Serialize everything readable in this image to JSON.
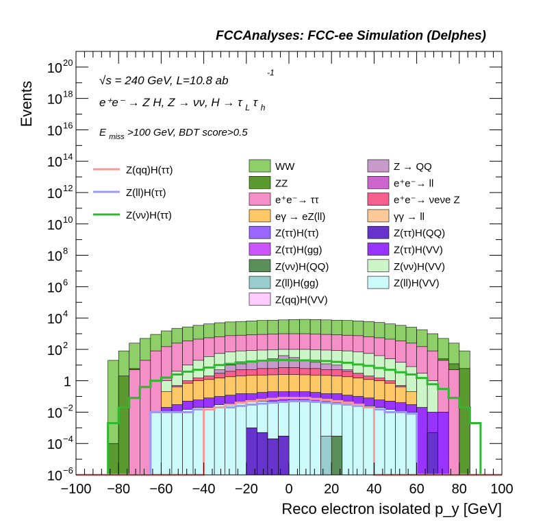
{
  "header": {
    "title": "FCCAnalyses: FCC-ee Simulation (Delphes)"
  },
  "annotations": {
    "energy_prefix": "√s = 240 GeV, L=10.8 ab",
    "energy_exp": "-1",
    "process": "e⁺e⁻ → Z H, Z → νν, H → τ_L τ_h",
    "process_main": "e⁺e⁻ → Z H, Z → νν, H → τ",
    "sub_L": "L",
    "tau": "τ",
    "sub_h": "h",
    "cuts_E": "E",
    "cuts_sub": "miss",
    "cuts_rest": ">100 GeV, BDT score>0.5"
  },
  "legend_signal": [
    {
      "label": "Z(qq)H(ττ)",
      "color": "#f59a9a"
    },
    {
      "label": "Z(ll)H(ττ)",
      "color": "#9a9af5"
    },
    {
      "label": "Z(νν)H(ττ)",
      "color": "#2eb82e"
    }
  ],
  "legend_bkg": [
    {
      "label": "WW",
      "color": "#8fcf6a"
    },
    {
      "label": "Z → QQ",
      "color": "#c89acb"
    },
    {
      "label": "ZZ",
      "color": "#5a9a2e"
    },
    {
      "label": "e⁺e⁻→ ll",
      "color": "#cc66cc"
    },
    {
      "label": "e⁺e⁻→ ττ",
      "color": "#f58fc8"
    },
    {
      "label": "e⁺e⁻→ νeνe Z",
      "color": "#f5608f"
    },
    {
      "label": "eγ → eZ(ll)",
      "color": "#fdc865"
    },
    {
      "label": "γγ → ll",
      "color": "#fcca99"
    },
    {
      "label": "Z(ττ)H(ττ)",
      "color": "#9966ff"
    },
    {
      "label": "Z(ττ)H(QQ)",
      "color": "#6633cc"
    },
    {
      "label": "Z(ττ)H(gg)",
      "color": "#cc55ff"
    },
    {
      "label": "Z(ττ)H(VV)",
      "color": "#9933ff"
    },
    {
      "label": "Z(νν)H(QQ)",
      "color": "#5a8f5a"
    },
    {
      "label": "Z(νν)H(VV)",
      "color": "#ccf5c8"
    },
    {
      "label": "Z(ll)H(gg)",
      "color": "#99cccc"
    },
    {
      "label": "Z(ll)H(VV)",
      "color": "#ccfafa"
    },
    {
      "label": "Z(qq)H(VV)",
      "color": "#ffccff"
    }
  ],
  "chart_data": {
    "type": "bar",
    "title": "FCCAnalyses: FCC-ee Simulation (Delphes)",
    "xlabel": "Reco electron isolated p_y [GeV]",
    "ylabel": "Events",
    "xlim": [
      -100,
      100
    ],
    "ylim": [
      1e-06,
      1e+21
    ],
    "yscale": "log",
    "grid": false,
    "x_ticks": [
      "−100",
      "−80",
      "−60",
      "−40",
      "−20",
      "0",
      "20",
      "40",
      "60",
      "80",
      "100"
    ],
    "y_ticks": [
      {
        "base": "10",
        "exp": "−6",
        "value": 1e-06
      },
      {
        "base": "10",
        "exp": "−4",
        "value": 0.0001
      },
      {
        "base": "10",
        "exp": "−2",
        "value": 0.01
      },
      {
        "base": "1",
        "exp": "",
        "value": 1
      },
      {
        "base": "10",
        "exp": "2",
        "value": 100.0
      },
      {
        "base": "10",
        "exp": "4",
        "value": 10000.0
      },
      {
        "base": "10",
        "exp": "6",
        "value": 1000000.0
      },
      {
        "base": "10",
        "exp": "8",
        "value": 100000000.0
      },
      {
        "base": "10",
        "exp": "10",
        "value": 10000000000.0
      },
      {
        "base": "10",
        "exp": "12",
        "value": 1000000000000.0
      },
      {
        "base": "10",
        "exp": "14",
        "value": 100000000000000.0
      },
      {
        "base": "10",
        "exp": "16",
        "value": 1e+16
      },
      {
        "base": "10",
        "exp": "18",
        "value": 1e+18
      },
      {
        "base": "10",
        "exp": "20",
        "value": 1e+20
      }
    ],
    "bin_edges": [
      -100,
      -95,
      -90,
      -85,
      -80,
      -75,
      -70,
      -65,
      -60,
      -55,
      -50,
      -45,
      -40,
      -35,
      -30,
      -25,
      -20,
      -15,
      -10,
      -5,
      0,
      5,
      10,
      15,
      20,
      25,
      30,
      35,
      40,
      45,
      50,
      55,
      60,
      65,
      70,
      75,
      80,
      85,
      90,
      95,
      100
    ],
    "stack_cumulative": [
      {
        "name": "WW",
        "color": "#8fcf6a",
        "values": [
          1e-06,
          1e-06,
          1e-06,
          20,
          80,
          250,
          500,
          900,
          1500,
          2200,
          2700,
          3400,
          4200,
          5000,
          5600,
          6000,
          6500,
          7000,
          7300,
          7600,
          8000,
          8200,
          8000,
          7600,
          7300,
          7000,
          6500,
          6000,
          5200,
          4200,
          3400,
          2600,
          1800,
          1000,
          500,
          250,
          80,
          1e-06,
          1e-06,
          1e-06
        ]
      },
      {
        "name": "ZZ",
        "color": "#5a9a2e",
        "values": [
          1e-06,
          1e-06,
          1e-06,
          0.0001,
          2,
          6,
          12,
          25,
          40,
          55,
          75,
          95,
          120,
          140,
          160,
          175,
          185,
          195,
          200,
          200,
          205,
          210,
          205,
          200,
          195,
          185,
          175,
          160,
          140,
          120,
          95,
          75,
          55,
          40,
          25,
          12,
          6,
          1e-06,
          1e-06,
          1e-06
        ]
      },
      {
        "name": "e+e- → ττ",
        "color": "#f58fc8",
        "values": [
          1e-06,
          1e-06,
          1e-06,
          1e-06,
          1e-06,
          5,
          20,
          80,
          150,
          250,
          350,
          450,
          550,
          650,
          750,
          800,
          850,
          900,
          950,
          1000,
          1000,
          1000,
          950,
          900,
          850,
          800,
          750,
          650,
          550,
          450,
          350,
          250,
          150,
          80,
          20,
          5,
          1e-06,
          1e-06,
          1e-06,
          1e-06
        ]
      },
      {
        "name": "Z(νν)H(VV)",
        "color": "#ccf5c8",
        "values": [
          1e-06,
          1e-06,
          1e-06,
          1e-06,
          1e-06,
          1e-06,
          1e-06,
          1e-06,
          1,
          4,
          10,
          20,
          35,
          55,
          70,
          80,
          85,
          90,
          95,
          100,
          100,
          100,
          95,
          90,
          85,
          80,
          70,
          55,
          40,
          25,
          15,
          8,
          3,
          1,
          1e-06,
          1e-06,
          1e-06,
          1e-06,
          1e-06,
          1e-06
        ]
      },
      {
        "name": "Z → QQ",
        "color": "#c89acb",
        "values": [
          1e-06,
          1e-06,
          1e-06,
          1e-06,
          1e-06,
          1e-06,
          1e-06,
          1e-06,
          1e-06,
          1e-06,
          1e-06,
          1e-06,
          2,
          5,
          10,
          12,
          15,
          20,
          25,
          40,
          30,
          20,
          15,
          12,
          10,
          5,
          2,
          1e-06,
          1e-06,
          1e-06,
          1e-06,
          1e-06,
          1e-06,
          1e-06,
          1e-06,
          1e-06,
          1e-06,
          1e-06,
          1e-06,
          1e-06
        ]
      },
      {
        "name": "e+e- → νeνe Z",
        "color": "#f5608f",
        "values": [
          1e-06,
          1e-06,
          1e-06,
          1e-06,
          1e-06,
          1e-06,
          1e-06,
          1e-06,
          1e-06,
          0.5,
          1,
          1.5,
          2,
          3,
          4,
          5,
          5,
          6,
          6,
          7,
          7,
          6,
          6,
          5,
          5,
          4,
          3,
          2,
          1.5,
          1,
          0.5,
          1e-06,
          1e-06,
          1e-06,
          1e-06,
          1e-06,
          1e-06,
          1e-06,
          1e-06,
          1e-06
        ]
      },
      {
        "name": "eγ → eZ(ll)",
        "color": "#fdc865",
        "values": [
          1e-06,
          1e-06,
          1e-06,
          1e-06,
          1e-06,
          1e-06,
          1e-06,
          1e-06,
          0.2,
          0.4,
          0.7,
          1,
          1.2,
          1.5,
          1.8,
          2,
          2.2,
          2.3,
          2.4,
          2.5,
          2.5,
          2.4,
          2.3,
          2.2,
          2,
          1.8,
          1.5,
          1.2,
          1,
          0.7,
          0.4,
          0.2,
          1e-06,
          1e-06,
          1e-06,
          1e-06,
          1e-06,
          1e-06,
          1e-06,
          1e-06
        ]
      },
      {
        "name": "Z(ττ)H(VV)",
        "color": "#9933ff",
        "values": [
          1e-06,
          1e-06,
          1e-06,
          1e-06,
          1e-06,
          1e-06,
          1e-06,
          0.01,
          0.02,
          0.03,
          0.05,
          0.06,
          0.08,
          0.1,
          0.12,
          0.15,
          0.15,
          0.18,
          0.2,
          0.2,
          0.2,
          0.2,
          0.18,
          0.15,
          0.15,
          0.12,
          0.1,
          0.08,
          0.06,
          0.05,
          0.04,
          0.03,
          0.02,
          0.01,
          0.01,
          1e-06,
          1e-06,
          1e-06,
          1e-06,
          1e-06
        ]
      },
      {
        "name": "Z(ll)H(VV)",
        "color": "#ccfafa",
        "values": [
          1e-06,
          1e-06,
          1e-06,
          1e-06,
          1e-06,
          1e-06,
          1e-06,
          0.01,
          0.01,
          0.01,
          0.015,
          0.02,
          0.02,
          0.03,
          0.035,
          0.04,
          0.045,
          0.05,
          0.05,
          0.05,
          0.05,
          0.05,
          0.05,
          0.045,
          0.04,
          0.035,
          0.03,
          0.025,
          0.02,
          0.015,
          0.01,
          0.01,
          1e-06,
          1e-06,
          1e-06,
          1e-06,
          1e-06,
          1e-06,
          1e-06,
          1e-06
        ]
      },
      {
        "name": "Z(ττ)H(QQ)",
        "color": "#6633cc",
        "values": [
          1e-06,
          1e-06,
          1e-06,
          1e-06,
          1e-06,
          1e-06,
          1e-06,
          1e-06,
          1e-06,
          1e-06,
          1e-06,
          1e-06,
          1e-06,
          1e-06,
          1e-06,
          1e-06,
          0.001,
          0.0005,
          0.0002,
          0.0003,
          1e-06,
          1e-06,
          1e-06,
          1e-06,
          1e-06,
          1e-06,
          1e-06,
          1e-06,
          1e-06,
          1e-06,
          1e-06,
          1e-06,
          1e-06,
          0.0005,
          1e-06,
          1e-06,
          1e-06,
          1e-06,
          1e-06,
          1e-06
        ]
      },
      {
        "name": "Z(νν)H(QQ)",
        "color": "#5a8f5a",
        "values": [
          1e-06,
          1e-06,
          1e-06,
          1e-06,
          1e-06,
          1e-06,
          1e-06,
          1e-06,
          1e-06,
          1e-06,
          1e-06,
          1e-06,
          1e-06,
          1e-06,
          1e-06,
          1e-06,
          1e-06,
          1e-06,
          1e-06,
          1e-06,
          1e-06,
          1e-06,
          1e-06,
          1e-06,
          0.0003,
          1e-06,
          1e-06,
          1e-06,
          1e-06,
          1e-06,
          1e-06,
          1e-06,
          1e-06,
          1e-06,
          1e-06,
          1e-06,
          1e-06,
          1e-06,
          1e-06,
          1e-06
        ]
      },
      {
        "name": "Z(ll)H(gg)",
        "color": "#99cccc",
        "values": [
          1e-06,
          1e-06,
          1e-06,
          1e-06,
          1e-06,
          1e-06,
          1e-06,
          1e-06,
          1e-06,
          1e-06,
          1e-06,
          1e-06,
          1e-06,
          1e-06,
          1e-06,
          1e-06,
          1e-06,
          1e-06,
          1e-06,
          1e-06,
          1e-06,
          1e-06,
          1e-06,
          0.0003,
          1e-06,
          1e-06,
          1e-06,
          1e-06,
          1e-06,
          1e-06,
          1e-06,
          1e-06,
          1e-06,
          1e-06,
          1e-06,
          1e-06,
          1e-06,
          1e-06,
          1e-06,
          1e-06
        ]
      }
    ],
    "signal_lines": [
      {
        "name": "Z(νν)H(ττ)",
        "color": "#2eb82e",
        "values": [
          1e-06,
          1e-06,
          1e-06,
          0.002,
          0.02,
          0.08,
          0.4,
          1,
          1.6,
          2.5,
          3.8,
          5,
          7,
          10,
          12,
          15,
          17,
          19,
          20,
          21,
          20,
          20,
          19,
          18,
          16,
          14,
          11,
          9,
          6.5,
          5,
          3.5,
          2.5,
          1.5,
          0.6,
          0.3,
          0.08,
          0.02,
          0.002,
          1e-06,
          1e-06
        ]
      },
      {
        "name": "Z(ll)H(ττ)",
        "color": "#9a9af5",
        "values": [
          1e-06,
          1e-06,
          1e-06,
          1e-06,
          1e-06,
          1e-06,
          1e-06,
          0.01,
          0.01,
          0.01,
          0.01,
          0.015,
          0.015,
          0.02,
          0.02,
          0.025,
          0.03,
          0.035,
          0.04,
          0.045,
          0.05,
          0.05,
          0.045,
          0.04,
          0.035,
          0.03,
          0.025,
          0.02,
          0.015,
          0.01,
          0.01,
          0.008,
          1e-06,
          1e-06,
          1e-06,
          1e-06,
          1e-06,
          1e-06,
          1e-06,
          1e-06
        ]
      },
      {
        "name": "Z(qq)H(ττ)",
        "color": "#f59a9a",
        "values": [
          1e-06,
          1e-06,
          1e-06,
          1e-06,
          1e-06,
          1e-06,
          1e-06,
          1e-06,
          1e-06,
          1e-06,
          1e-06,
          1e-06,
          0.015,
          0.02,
          0.03,
          0.04,
          0.05,
          0.06,
          0.07,
          0.08,
          0.08,
          0.08,
          0.07,
          0.06,
          0.05,
          0.04,
          0.03,
          0.02,
          1e-06,
          1e-06,
          1e-06,
          1e-06,
          1e-06,
          1e-06,
          1e-06,
          1e-06,
          1e-06,
          1e-06,
          1e-06,
          1e-06
        ]
      }
    ]
  }
}
